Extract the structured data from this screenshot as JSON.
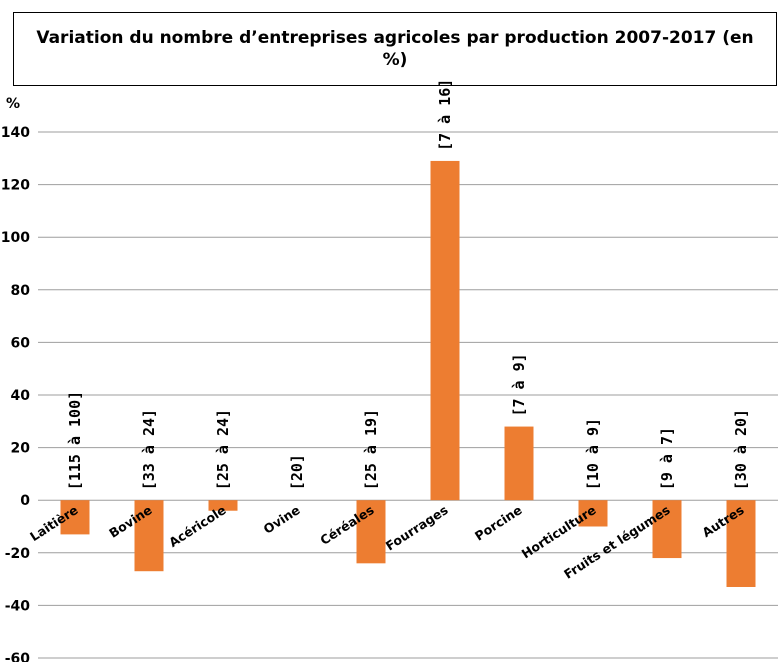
{
  "chart_data": {
    "type": "bar",
    "title": "Variation du nombre d’entreprises agricoles par production 2007-2017 (en %)",
    "ylabel": "%",
    "ylim": [
      -60,
      140
    ],
    "yticks": [
      140,
      120,
      100,
      80,
      60,
      40,
      20,
      0,
      -20,
      -40,
      -60
    ],
    "grid": true,
    "color": "#ed7d31",
    "categories": [
      "Laitière",
      "Bovine",
      "Acéricole",
      "Ovine",
      "Céréales",
      "Fourrages",
      "Porcine",
      "Horticulture",
      "Fruits et légumes",
      "Autres"
    ],
    "values": [
      -13,
      -27,
      -4,
      0,
      -24,
      129,
      28,
      -10,
      -22,
      -33
    ],
    "data_labels": [
      "[115 à 100]",
      "[33 à 24]",
      "[25 à 24]",
      "[20]",
      "[25 à 19]",
      "[7 à 16]",
      "[7 à 9]",
      "[10 à 9]",
      "[9 à 7]",
      "[30 à 20]"
    ]
  }
}
